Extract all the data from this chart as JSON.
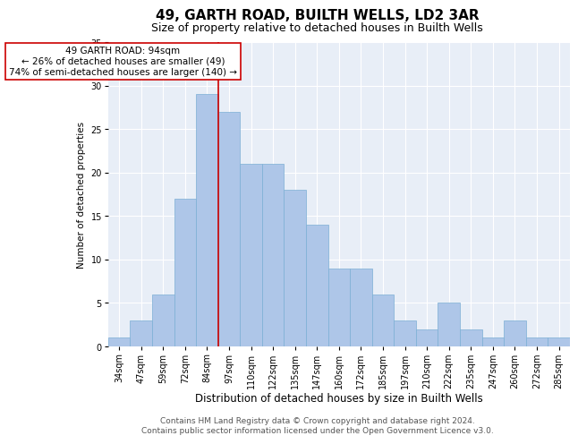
{
  "title1": "49, GARTH ROAD, BUILTH WELLS, LD2 3AR",
  "title2": "Size of property relative to detached houses in Builth Wells",
  "xlabel": "Distribution of detached houses by size in Builth Wells",
  "ylabel": "Number of detached properties",
  "categories": [
    "34sqm",
    "47sqm",
    "59sqm",
    "72sqm",
    "84sqm",
    "97sqm",
    "110sqm",
    "122sqm",
    "135sqm",
    "147sqm",
    "160sqm",
    "172sqm",
    "185sqm",
    "197sqm",
    "210sqm",
    "222sqm",
    "235sqm",
    "247sqm",
    "260sqm",
    "272sqm",
    "285sqm"
  ],
  "values": [
    1,
    3,
    6,
    17,
    29,
    27,
    21,
    21,
    18,
    14,
    9,
    9,
    6,
    3,
    2,
    5,
    2,
    1,
    3,
    1,
    1
  ],
  "bar_color": "#aec6e8",
  "bar_edge_color": "#7bafd4",
  "bar_width": 1.0,
  "vline_x": 4.5,
  "vline_color": "#cc0000",
  "annotation_text": "49 GARTH ROAD: 94sqm\n← 26% of detached houses are smaller (49)\n74% of semi-detached houses are larger (140) →",
  "annotation_box_color": "#ffffff",
  "annotation_box_edge": "#cc0000",
  "ylim": [
    0,
    35
  ],
  "yticks": [
    0,
    5,
    10,
    15,
    20,
    25,
    30,
    35
  ],
  "background_color": "#e8eef7",
  "grid_color": "#ffffff",
  "footer_line1": "Contains HM Land Registry data © Crown copyright and database right 2024.",
  "footer_line2": "Contains public sector information licensed under the Open Government Licence v3.0.",
  "title1_fontsize": 11,
  "title2_fontsize": 9,
  "xlabel_fontsize": 8.5,
  "ylabel_fontsize": 7.5,
  "tick_fontsize": 7,
  "annotation_fontsize": 7.5,
  "footer_fontsize": 6.5
}
